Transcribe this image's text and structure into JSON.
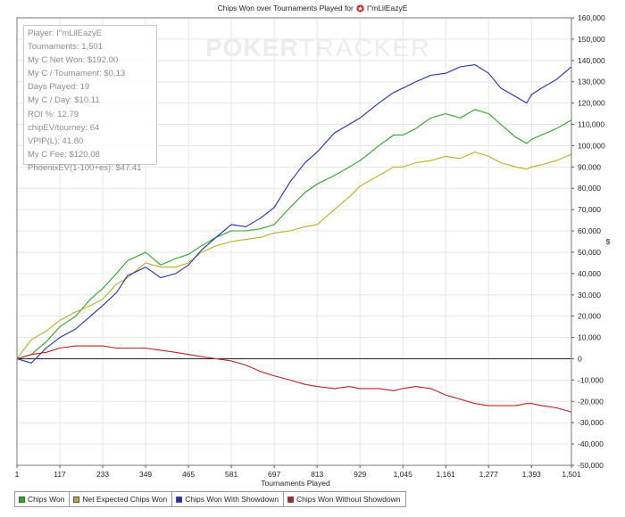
{
  "title": {
    "prefix": "Chips Won over Tournaments Played for",
    "player": "I\"mLilEazyE",
    "icon": "pokerstars-icon"
  },
  "watermark": {
    "bold": "POKER",
    "light": "TRACKER"
  },
  "stats": [
    "Player: I\"mLilEazyE",
    "Tournaments: 1,501",
    "My C Net Won: $192.00",
    "My C / Tournament: $0.13",
    "Days Played: 19",
    "My C / Day: $10.11",
    "ROI %: 12.79",
    "chipEV/tourney: 64",
    "VPIP(L): 41.80",
    "My C Fee: $120.08",
    "PhoenixEV(1-100+es): $47.41"
  ],
  "legend": [
    {
      "label": "Chips Won",
      "color": "#22aa22"
    },
    {
      "label": "Net Expected Chips Won",
      "color": "#b8b020"
    },
    {
      "label": "Chips Won With Showdown",
      "color": "#2030b0"
    },
    {
      "label": "Chips Won Without Showdown",
      "color": "#c02020"
    }
  ],
  "chart_data": {
    "type": "line",
    "title": "Chips Won over Tournaments Played for I\"mLilEazyE",
    "xlabel": "Tournaments Played",
    "ylabel": "$",
    "xlim": [
      1,
      1501
    ],
    "ylim": [
      -50000,
      160000
    ],
    "x_ticks": [
      "1",
      "117",
      "233",
      "349",
      "465",
      "581",
      "697",
      "813",
      "929",
      "1,045",
      "1,161",
      "1,277",
      "1,393",
      "1,501"
    ],
    "y_ticks": [
      "-50,000",
      "-40,000",
      "-30,000",
      "-20,000",
      "-10,000",
      "0",
      "10,000",
      "20,000",
      "30,000",
      "40,000",
      "50,000",
      "60,000",
      "70,000",
      "80,000",
      "90,000",
      "100,000",
      "110,000",
      "120,000",
      "130,000",
      "140,000",
      "150,000",
      "160,000"
    ],
    "grid": true,
    "legend_position": "bottom",
    "x": [
      1,
      40,
      80,
      117,
      160,
      200,
      233,
      270,
      300,
      349,
      390,
      430,
      465,
      500,
      540,
      581,
      620,
      660,
      697,
      740,
      780,
      813,
      860,
      900,
      929,
      980,
      1020,
      1045,
      1080,
      1120,
      1161,
      1200,
      1240,
      1277,
      1310,
      1350,
      1380,
      1393,
      1420,
      1460,
      1501
    ],
    "series": [
      {
        "name": "Chips Won",
        "color": "#22aa22",
        "values": [
          0,
          2000,
          8000,
          15000,
          20000,
          28000,
          33000,
          40000,
          46000,
          50000,
          44000,
          47000,
          49000,
          53000,
          57000,
          60000,
          60000,
          61000,
          63000,
          71000,
          78000,
          82000,
          86000,
          90000,
          93000,
          100000,
          105000,
          105000,
          108000,
          113000,
          115000,
          113000,
          117000,
          115000,
          110000,
          104000,
          101000,
          103000,
          105000,
          108000,
          112000
        ]
      },
      {
        "name": "Net Expected Chips Won",
        "color": "#b8b020",
        "values": [
          0,
          9000,
          13000,
          18000,
          22000,
          25000,
          28000,
          35000,
          38000,
          45000,
          43000,
          43000,
          45000,
          50000,
          53000,
          55000,
          56000,
          57000,
          59000,
          60000,
          62000,
          63000,
          70000,
          76000,
          81000,
          86000,
          90000,
          90000,
          92000,
          93000,
          95000,
          94000,
          97000,
          95000,
          92000,
          90000,
          89000,
          90000,
          91000,
          93000,
          96000
        ]
      },
      {
        "name": "Chips Won With Showdown",
        "color": "#2030b0",
        "values": [
          0,
          -2000,
          5000,
          10000,
          14000,
          20000,
          25000,
          31000,
          39000,
          43000,
          38000,
          40000,
          44000,
          51000,
          57000,
          63000,
          62000,
          66000,
          71000,
          83000,
          92000,
          97000,
          106000,
          110000,
          113000,
          120000,
          125000,
          127000,
          130000,
          133000,
          134000,
          137000,
          138000,
          134000,
          127000,
          123000,
          120000,
          124000,
          127000,
          131000,
          137000
        ]
      },
      {
        "name": "Chips Won Without Showdown",
        "color": "#c02020",
        "values": [
          0,
          2000,
          3000,
          5000,
          6000,
          6000,
          6000,
          5000,
          5000,
          5000,
          4000,
          3000,
          2000,
          1000,
          0,
          -1000,
          -3000,
          -6000,
          -8000,
          -10000,
          -12000,
          -13000,
          -14000,
          -13000,
          -14000,
          -14000,
          -15000,
          -14000,
          -13000,
          -14000,
          -17000,
          -19000,
          -21000,
          -22000,
          -22000,
          -22000,
          -21000,
          -21000,
          -22000,
          -23000,
          -25000
        ]
      }
    ]
  }
}
